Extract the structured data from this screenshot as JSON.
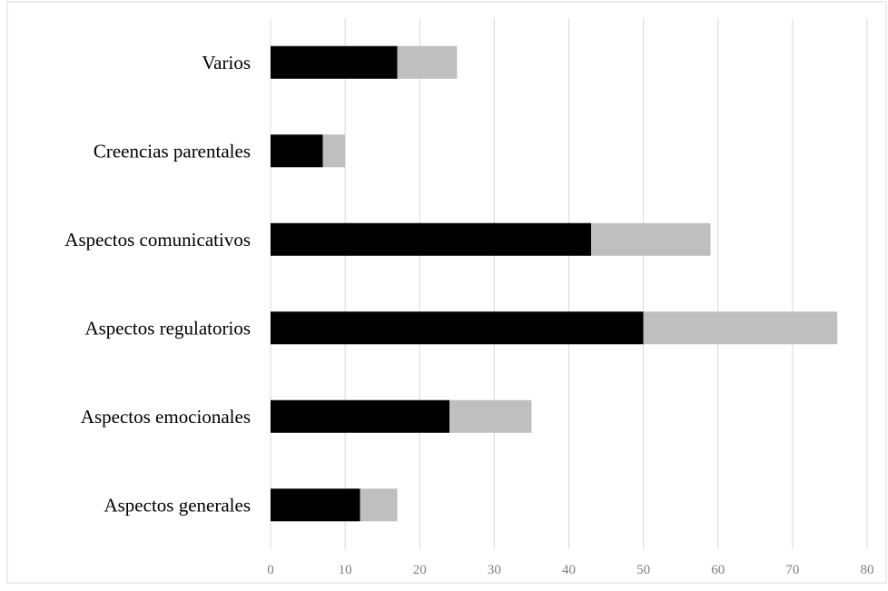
{
  "chart_data": {
    "type": "bar",
    "orientation": "horizontal",
    "stacked": true,
    "title": "",
    "xlabel": "",
    "ylabel": "",
    "categories": [
      "Aspectos generales",
      "Aspectos emocionales",
      "Aspectos regulatorios",
      "Aspectos comunicativos",
      "Creencias parentales",
      "Varios"
    ],
    "series": [
      {
        "values": [
          12,
          24,
          50,
          43,
          7,
          17
        ],
        "color": "#000000"
      },
      {
        "values": [
          5,
          11,
          26,
          16,
          3,
          8
        ],
        "color": "#bfbfbf"
      }
    ],
    "xlim": [
      0,
      80
    ],
    "xticks": [
      0,
      10,
      20,
      30,
      40,
      50,
      60,
      70,
      80
    ],
    "grid": true,
    "legend": "none"
  }
}
